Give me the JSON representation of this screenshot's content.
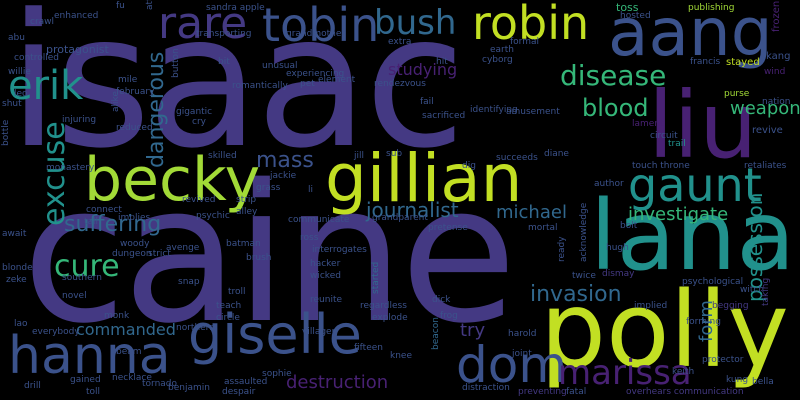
{
  "background": "#000000",
  "palette": {
    "indigo": "#443983",
    "slate": "#3b528b",
    "steel": "#31688e",
    "teal": "#21918c",
    "green": "#35b779",
    "lime": "#a2da37",
    "yellowgreen": "#c2df23",
    "purple": "#482173",
    "darkpurple": "#440154"
  },
  "words": {
    "isaac": "isaac",
    "caine": "caine",
    "lana": "lana",
    "polly": "polly",
    "gillian": "gillian",
    "liu": "liu",
    "aang": "aang",
    "robin": "robin",
    "becky": "becky",
    "tobin": "tobin",
    "giselle": "giselle",
    "hanna": "hanna",
    "rare": "rare",
    "bush": "bush",
    "erik": "erik",
    "gaunt": "gaunt",
    "dom": "dom",
    "marissa": "marissa",
    "disease": "disease",
    "excuse": "excuse",
    "cure": "cure",
    "blood": "blood",
    "weapon": "weapon",
    "suffering": "suffering",
    "invasion": "invasion",
    "journalist": "journalist",
    "michael": "michael",
    "mass": "mass",
    "investigate": "investigate",
    "possession": "possession",
    "dangerous": "dangerous",
    "destruction": "destruction",
    "commanded": "commanded",
    "form": "form",
    "try": "try",
    "studying": "studying",
    "toss": "toss",
    "publishing": "publishing",
    "stayed": "stayed",
    "frozen": "frozen",
    "kang": "kang",
    "francis": "francis",
    "wind": "wind",
    "purse": "purse",
    "nation": "nation",
    "revive": "revive",
    "lament": "lament",
    "circuit": "circuit",
    "trail": "trail",
    "touch_throne": "touch throne",
    "retaliates": "retaliates",
    "bolt": "bolt",
    "author": "author",
    "dismay": "dismay",
    "hugh": "hugh",
    "witch": "witch",
    "taking": "taking",
    "psychological": "psychological",
    "begging": "begging",
    "implied": "implied",
    "forming": "forming",
    "protector": "protector",
    "keith": "keith",
    "kung": "kung",
    "bella": "bella",
    "overhears_communication": "overhears communication",
    "fatal": "fatal",
    "preventing": "preventing",
    "distraction": "distraction",
    "joint": "joint",
    "harold": "harold",
    "beacon": "beacon",
    "frog": "frog",
    "dick": "dick",
    "explode": "explode",
    "regardless": "regardless",
    "reunite": "reunite",
    "started": "started",
    "fifteen": "fifteen",
    "knee": "knee",
    "villager": "villager",
    "sophie": "sophie",
    "assaulted": "assaulted",
    "despair": "despair",
    "benjamin": "benjamin",
    "tornado": "tornado",
    "toll": "toll",
    "necklace": "necklace",
    "gained": "gained",
    "drill": "drill",
    "everybody": "everybody",
    "lao": "lao",
    "zeke": "zeke",
    "blonde": "blonde",
    "monk": "monk",
    "beam": "beam",
    "novel": "novel",
    "southern": "southern",
    "northern": "northern",
    "teach": "teach",
    "circle": "circle",
    "troll": "troll",
    "snap": "snap",
    "hacker": "hacker",
    "wicked": "wicked",
    "interrogates": "interrogates",
    "ross": "ross",
    "communicate": "communicate",
    "brush": "brush",
    "batman": "batman",
    "avenge": "avenge",
    "dungeon": "dungeon",
    "strict": "strict",
    "woody": "woody",
    "tall": "tall",
    "implies": "implies",
    "connect": "connect",
    "await": "await",
    "psychic": "psychic",
    "revived": "revived",
    "strip": "strip",
    "alley": "alley",
    "grass": "grass",
    "jackie": "jackie",
    "li": "li",
    "grandparent": "grandparent",
    "pretense": "pretense",
    "mortal": "mortal",
    "ready": "ready",
    "twice": "twice",
    "acknowledge": "acknowledge",
    "succeeds": "succeeds",
    "diane": "diane",
    "dig": "dig",
    "sub": "sub",
    "jill": "jill",
    "sacrificed": "sacrificed",
    "identifying": "identifying",
    "amusement": "amusement",
    "rendezvous": "rendezvous",
    "element": "element",
    "experiencing": "experiencing",
    "romantically": "romantically",
    "unusual": "unusual",
    "bit": "bit",
    "pet": "pet",
    "gigantic": "gigantic",
    "cry": "cry",
    "skilled": "skilled",
    "injuring": "injuring",
    "reduced": "reduced",
    "february": "february",
    "alike": "alike",
    "mile": "mile",
    "button": "button",
    "protagonist": "protagonist",
    "controlled": "controlled",
    "willie": "willie",
    "shut": "shut",
    "bottle": "bottle",
    "abu": "abu",
    "crawl": "crawl",
    "enhanced": "enhanced",
    "fu": "fu",
    "attempted": "attempted",
    "sandra_apple": "sandra apple",
    "transporting": "transporting",
    "grandmother": "grandmother",
    "extra": "extra",
    "earth": "earth",
    "cyborg": "cyborg",
    "formal": "formal",
    "hosted": "hosted",
    "leo": "leo",
    "monastery": "monastery",
    "fail": "fail",
    "hit": "hit"
  }
}
